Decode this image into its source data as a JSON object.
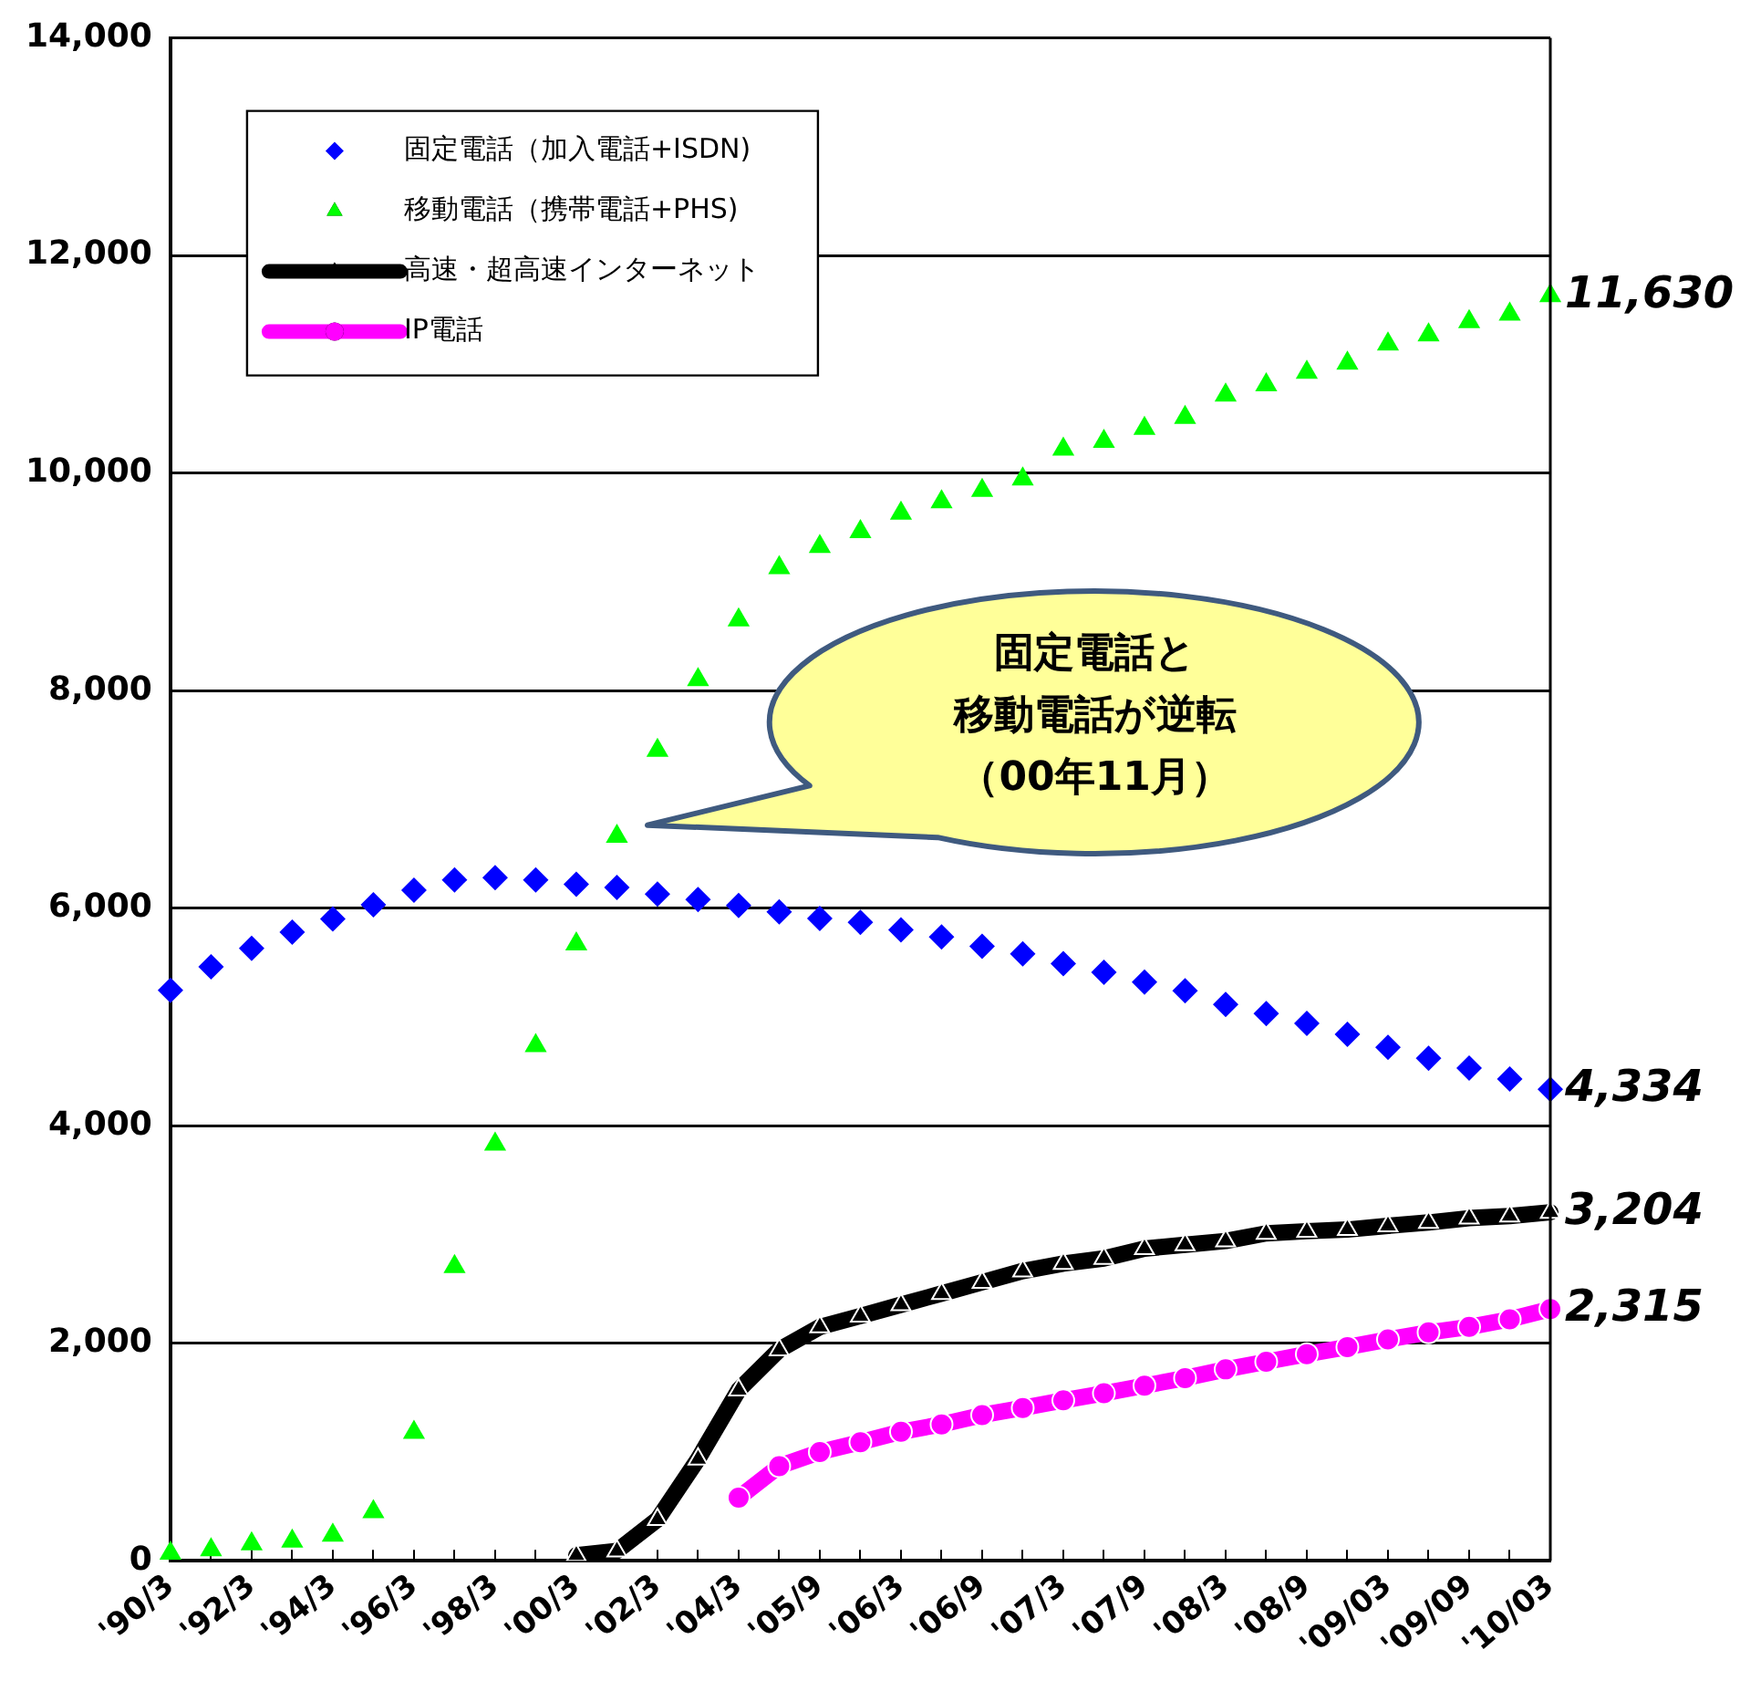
{
  "chart_data": {
    "type": "line",
    "categories": [
      "'90/3",
      null,
      "'92/3",
      null,
      "'94/3",
      null,
      "'96/3",
      null,
      "'98/3",
      null,
      "'00/3",
      null,
      "'02/3",
      null,
      "'04/3",
      null,
      "'05/9",
      null,
      "'06/3",
      null,
      "'06/9",
      null,
      "'07/3",
      null,
      "'07/9",
      null,
      "'08/3",
      null,
      "'08/9",
      null,
      "'09/03",
      null,
      "'09/09",
      null,
      "'10/03"
    ],
    "series": [
      {
        "name": "固定電話（加入電話+ISDN)",
        "type": "scatter",
        "marker": "diamond",
        "color": "#0000ff",
        "values": [
          5245,
          5460,
          5630,
          5780,
          5900,
          6030,
          6165,
          6260,
          6280,
          6260,
          6220,
          6190,
          6130,
          6080,
          6025,
          5965,
          5905,
          5870,
          5800,
          5735,
          5650,
          5580,
          5490,
          5410,
          5320,
          5240,
          5115,
          5030,
          4940,
          4840,
          4720,
          4620,
          4530,
          4430,
          4334
        ],
        "value_labels": [
          null,
          null,
          null,
          null,
          null,
          null,
          null,
          null,
          null,
          null,
          null,
          null,
          null,
          null,
          null,
          null,
          null,
          null,
          null,
          null,
          null,
          null,
          null,
          null,
          null,
          null,
          null,
          null,
          null,
          null,
          null,
          null,
          null,
          null,
          "4,334"
        ]
      },
      {
        "name": "移動電話（携帯電話+PHS)",
        "type": "scatter",
        "marker": "triangle",
        "color": "#00ff00",
        "values": [
          70,
          100,
          155,
          180,
          235,
          450,
          1180,
          2705,
          3830,
          4735,
          5670,
          6660,
          7450,
          8100,
          8650,
          9130,
          9325,
          9460,
          9630,
          9735,
          9840,
          9945,
          10220,
          10290,
          10410,
          10510,
          10715,
          10810,
          10925,
          11010,
          11185,
          11270,
          11390,
          11460,
          11630
        ],
        "value_labels": [
          null,
          null,
          null,
          null,
          null,
          null,
          null,
          null,
          null,
          null,
          null,
          null,
          null,
          null,
          null,
          null,
          null,
          null,
          null,
          null,
          null,
          null,
          null,
          null,
          null,
          null,
          null,
          null,
          null,
          null,
          null,
          null,
          null,
          null,
          "11,630"
        ]
      },
      {
        "name": "高速・超高速インターネット",
        "type": "line",
        "marker": "triangle",
        "color": "#000000",
        "values": [
          null,
          null,
          null,
          null,
          null,
          null,
          null,
          null,
          null,
          null,
          50,
          90,
          380,
          935,
          1570,
          1940,
          2150,
          2250,
          2354,
          2457,
          2560,
          2664,
          2733,
          2780,
          2870,
          2905,
          2940,
          3010,
          3030,
          3045,
          3080,
          3110,
          3150,
          3170,
          3204
        ],
        "value_labels": [
          null,
          null,
          null,
          null,
          null,
          null,
          null,
          null,
          null,
          null,
          null,
          null,
          null,
          null,
          null,
          null,
          null,
          null,
          null,
          null,
          null,
          null,
          null,
          null,
          null,
          null,
          null,
          null,
          null,
          null,
          null,
          null,
          null,
          null,
          "3,204"
        ]
      },
      {
        "name": "IP電話",
        "type": "line",
        "marker": "circle",
        "color": "#ff00ff",
        "values": [
          null,
          null,
          null,
          null,
          null,
          null,
          null,
          null,
          null,
          null,
          null,
          null,
          null,
          null,
          580,
          870,
          1000,
          1090,
          1186,
          1254,
          1340,
          1405,
          1475,
          1540,
          1610,
          1680,
          1760,
          1830,
          1900,
          1965,
          2035,
          2100,
          2150,
          2220,
          2315
        ],
        "value_labels": [
          null,
          null,
          null,
          null,
          null,
          null,
          null,
          null,
          null,
          null,
          null,
          null,
          null,
          null,
          null,
          null,
          null,
          null,
          null,
          null,
          null,
          null,
          null,
          null,
          null,
          null,
          null,
          null,
          null,
          null,
          null,
          null,
          null,
          null,
          "2,315"
        ]
      }
    ],
    "ylim": [
      0,
      14000
    ],
    "yticks": [
      {
        "value": 0,
        "label": "0"
      },
      {
        "value": 2000,
        "label": "2,000"
      },
      {
        "value": 4000,
        "label": "4,000"
      },
      {
        "value": 6000,
        "label": "6,000"
      },
      {
        "value": 8000,
        "label": "8,000"
      },
      {
        "value": 10000,
        "label": "10,000"
      },
      {
        "value": 12000,
        "label": "12,000"
      },
      {
        "value": 14000,
        "label": "14,000"
      }
    ],
    "grid": "y",
    "legend": "top left",
    "annotations": [
      "固定電話と",
      "移動電話が逆転",
      "（00年11月）"
    ]
  }
}
